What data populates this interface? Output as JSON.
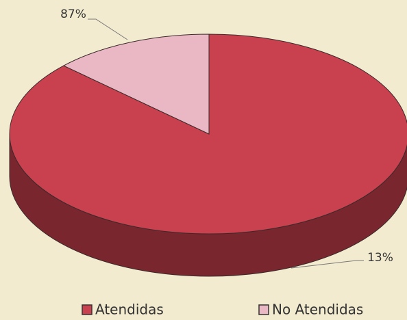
{
  "chart_data": {
    "type": "pie",
    "categories": [
      "Atendidas",
      "No Atendidas"
    ],
    "values": [
      87,
      13
    ],
    "value_labels": [
      "87%",
      "13%"
    ],
    "colors": [
      "#c9404f",
      "#eab8c4"
    ]
  }
}
